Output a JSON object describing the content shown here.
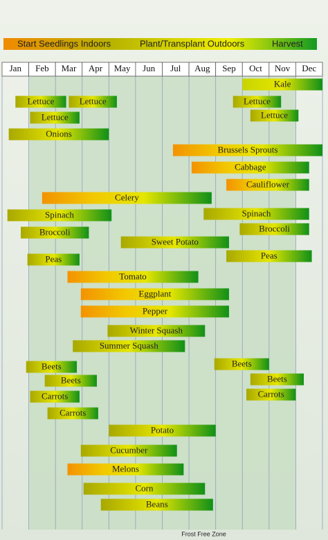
{
  "chart_data": {
    "type": "gantt",
    "legend": [
      "Start Seedlings Indoors",
      "Plant/Transplant Outdoors",
      "Harvest"
    ],
    "categories": [
      "Jan",
      "Feb",
      "Mar",
      "Apr",
      "May",
      "Jun",
      "Jul",
      "Aug",
      "Sep",
      "Oct",
      "Nov",
      "Dec"
    ],
    "xlim": [
      0,
      12
    ],
    "frost_free_zone": {
      "label": "Frost Free Zone",
      "start": 1,
      "end": 11
    },
    "bars": [
      {
        "label": "Kale",
        "start": 9.0,
        "end": 12.0,
        "color": "#c8d400"
      },
      {
        "label": "Lettuce",
        "start": 0.5,
        "end": 2.4,
        "color": "#a8a800"
      },
      {
        "label": "Lettuce",
        "start": 2.5,
        "end": 4.3,
        "color": "#a8a800"
      },
      {
        "label": "Lettuce",
        "start": 1.05,
        "end": 2.9,
        "color": "#a8a800"
      },
      {
        "label": "Lettuce",
        "start": 8.65,
        "end": 10.45,
        "color": "#a8a800"
      },
      {
        "label": "Lettuce",
        "start": 9.3,
        "end": 11.1,
        "color": "#a8a800"
      },
      {
        "label": "Onions",
        "start": 0.25,
        "end": 4.0,
        "color": "#a8a800"
      },
      {
        "label": "Brussels Sprouts",
        "start": 6.4,
        "end": 12.0,
        "color": "#f39200"
      },
      {
        "label": "Cabbage",
        "start": 7.1,
        "end": 11.5,
        "color": "#f39200"
      },
      {
        "label": "Cauliflower",
        "start": 8.4,
        "end": 11.5,
        "color": "#f39200"
      },
      {
        "label": "Celery",
        "start": 1.5,
        "end": 7.85,
        "color": "#f39200"
      },
      {
        "label": "Spinach",
        "start": 0.2,
        "end": 4.1,
        "color": "#a8a800"
      },
      {
        "label": "Spinach",
        "start": 7.55,
        "end": 11.5,
        "color": "#a8a800"
      },
      {
        "label": "Broccoli",
        "start": 0.7,
        "end": 3.25,
        "color": "#a8a800"
      },
      {
        "label": "Broccoli",
        "start": 8.9,
        "end": 11.5,
        "color": "#a8a800"
      },
      {
        "label": "Sweet Potato",
        "start": 4.45,
        "end": 8.5,
        "color": "#a8a800"
      },
      {
        "label": "Peas",
        "start": 0.95,
        "end": 2.9,
        "color": "#a8a800"
      },
      {
        "label": "Peas",
        "start": 8.4,
        "end": 11.6,
        "color": "#a8a800"
      },
      {
        "label": "Tomato",
        "start": 2.45,
        "end": 7.35,
        "color": "#f39200"
      },
      {
        "label": "Eggplant",
        "start": 2.95,
        "end": 8.5,
        "color": "#f39200"
      },
      {
        "label": "Pepper",
        "start": 2.95,
        "end": 8.5,
        "color": "#f39200"
      },
      {
        "label": "Winter Squash",
        "start": 3.95,
        "end": 7.6,
        "color": "#a8a800"
      },
      {
        "label": "Summer Squash",
        "start": 2.65,
        "end": 6.85,
        "color": "#a8a800"
      },
      {
        "label": "Beets",
        "start": 0.9,
        "end": 2.8,
        "color": "#a8a800"
      },
      {
        "label": "Beets",
        "start": 7.95,
        "end": 10.0,
        "color": "#a8a800"
      },
      {
        "label": "Beets",
        "start": 1.6,
        "end": 3.55,
        "color": "#a8a800"
      },
      {
        "label": "Beets",
        "start": 9.3,
        "end": 11.3,
        "color": "#a8a800"
      },
      {
        "label": "Carrots",
        "start": 1.05,
        "end": 2.9,
        "color": "#a8a800"
      },
      {
        "label": "Carrots",
        "start": 9.15,
        "end": 11.0,
        "color": "#a8a800"
      },
      {
        "label": "Carrots",
        "start": 1.7,
        "end": 3.6,
        "color": "#a8a800"
      },
      {
        "label": "Potato",
        "start": 4.0,
        "end": 8.0,
        "color": "#a8a800"
      },
      {
        "label": "Cucumber",
        "start": 2.95,
        "end": 6.55,
        "color": "#a8a800"
      },
      {
        "label": "Melons",
        "start": 2.45,
        "end": 6.8,
        "color": "#f39200"
      },
      {
        "label": "Corn",
        "start": 3.05,
        "end": 7.6,
        "color": "#a8a800"
      },
      {
        "label": "Beans",
        "start": 3.7,
        "end": 7.9,
        "color": "#a8a800"
      }
    ]
  }
}
